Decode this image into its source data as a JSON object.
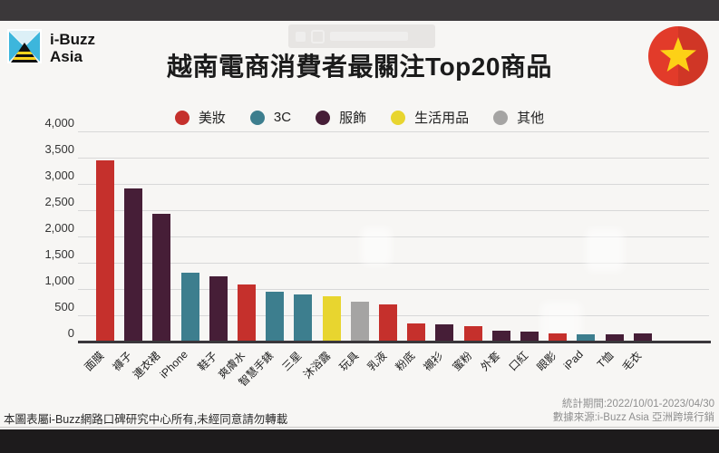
{
  "brand": {
    "line1": "i-Buzz",
    "line2": "Asia"
  },
  "title": "越南電商消費者最關注Top20商品",
  "legend": {
    "items": [
      {
        "label": "美妝",
        "color": "#c5302c"
      },
      {
        "label": "3C",
        "color": "#3d7e8e"
      },
      {
        "label": "服飾",
        "color": "#461e37"
      },
      {
        "label": "生活用品",
        "color": "#e8d52f"
      },
      {
        "label": "其他",
        "color": "#a5a4a3"
      }
    ]
  },
  "chart_data": {
    "type": "bar",
    "title": "越南電商消費者最關注Top20商品",
    "xlabel": "",
    "ylabel": "",
    "ylim": [
      0,
      4000
    ],
    "ytick_interval": 500,
    "grid": true,
    "legend_position": "top",
    "categories": [
      "面膜",
      "褲子",
      "連衣裙",
      "iPhone",
      "鞋子",
      "爽膚水",
      "智慧手錶",
      "三星",
      "沐浴露",
      "玩具",
      "乳液",
      "粉底",
      "襯衫",
      "蜜粉",
      "外套",
      "口紅",
      "眼影",
      "iPad",
      "T恤",
      "毛衣"
    ],
    "values": [
      3450,
      2920,
      2430,
      1310,
      1250,
      1090,
      940,
      900,
      860,
      760,
      700,
      340,
      320,
      300,
      205,
      195,
      160,
      135,
      145,
      150
    ],
    "groups": [
      "美妝",
      "服飾",
      "服飾",
      "3C",
      "服飾",
      "美妝",
      "3C",
      "3C",
      "生活用品",
      "其他",
      "美妝",
      "美妝",
      "服飾",
      "美妝",
      "服飾",
      "服飾",
      "美妝",
      "3C",
      "服飾",
      "服飾"
    ],
    "group_colors": {
      "美妝": "#c5302c",
      "3C": "#3d7e8e",
      "服飾": "#461e37",
      "生活用品": "#e8d52f",
      "其他": "#a5a4a3"
    }
  },
  "footer": {
    "copyright": "本圖表屬i-Buzz網路口碑研究中心所有,未經同意請勿轉載",
    "period": "統計期間:2022/10/01-2023/04/30",
    "source": "數據來源:i-Buzz Asia 亞洲跨境行銷"
  },
  "flag": {
    "country": "vietnam",
    "circle_color": "#dd3023",
    "star_color": "#fdd116"
  },
  "logo_colors": {
    "cyan": "#3db6dc",
    "black": "#121212",
    "yellow": "#ffd41e"
  }
}
